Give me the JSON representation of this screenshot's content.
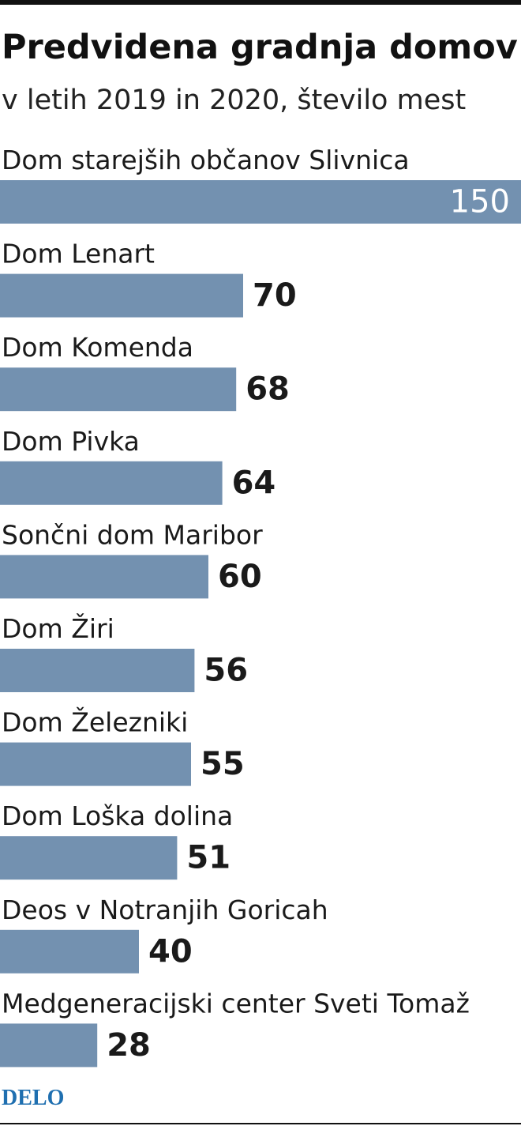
{
  "chart_data": {
    "type": "bar",
    "orientation": "horizontal",
    "title": "Predvidena gradnja domov",
    "subtitle": "v letih 2019 in 2020, število mest",
    "categories": [
      "Dom starejših občanov Slivnica",
      "Dom Lenart",
      "Dom Komenda",
      "Dom Pivka",
      "Sončni dom Maribor",
      "Dom Žiri",
      "Dom Železniki",
      "Dom Loška dolina",
      "Deos v Notranjih Goricah",
      "Medgeneracijski center Sveti Tomaž"
    ],
    "values": [
      150,
      70,
      68,
      64,
      60,
      56,
      55,
      51,
      40,
      28
    ],
    "color": "#7391b0",
    "xlim": [
      0,
      150
    ],
    "source": "DELO"
  }
}
